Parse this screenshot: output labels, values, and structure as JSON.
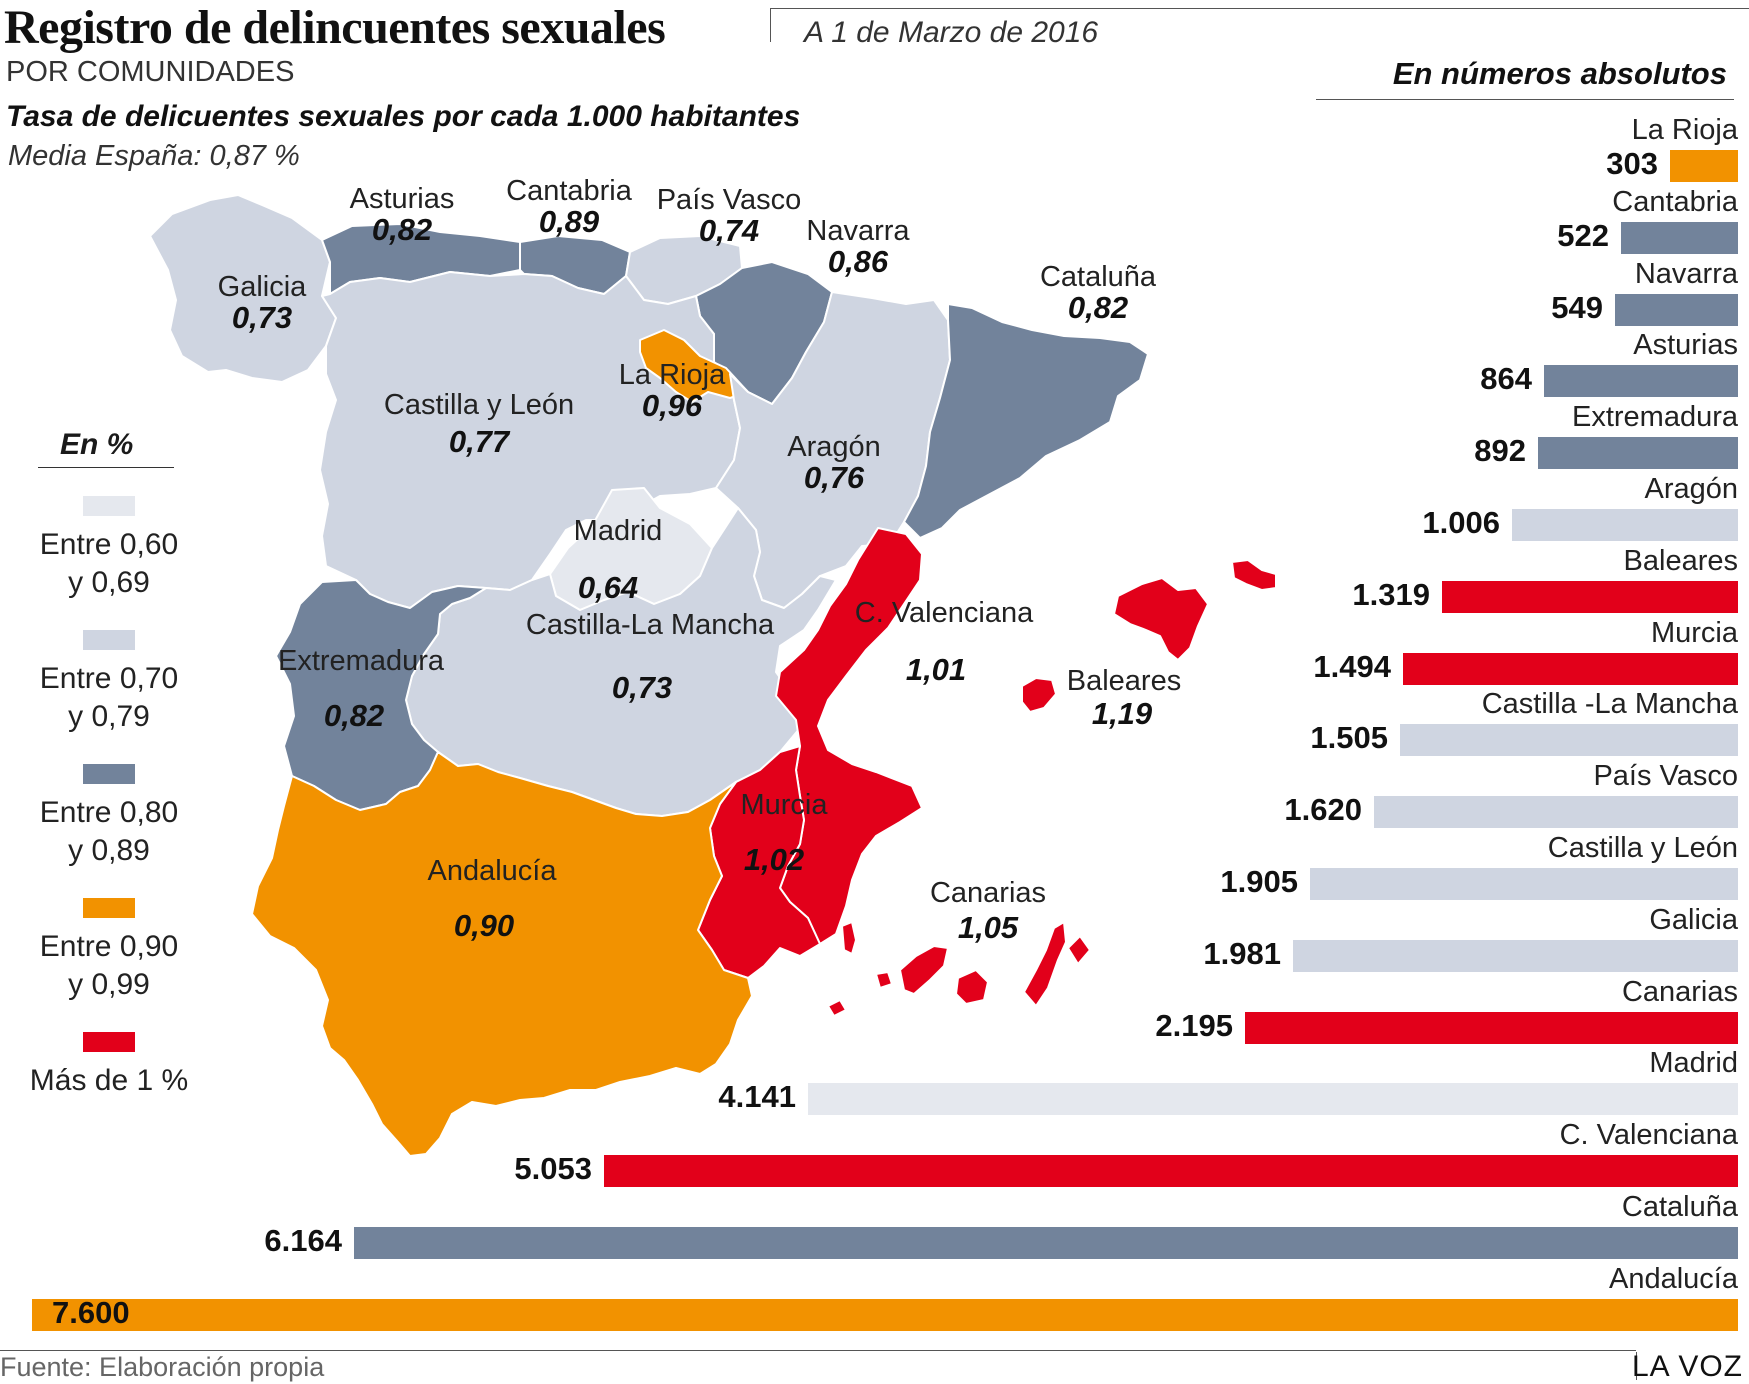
{
  "header": {
    "title": "Registro de delincuentes sexuales",
    "date": "A 1 de Marzo de 2016",
    "subtitle": "POR COMUNIDADES",
    "rate_title": "Tasa de delicuentes sexuales por cada 1.000 habitantes",
    "mean": "Media España: 0,87 %",
    "abs_title": "En números absolutos"
  },
  "colors": {
    "band_060_069": "#e5e8ee",
    "band_070_079": "#cfd5e1",
    "band_080_089": "#72839b",
    "band_090_099": "#f29200",
    "band_over_1": "#e2001a"
  },
  "legend": {
    "title": "En %",
    "items": [
      {
        "label1": "Entre 0,60",
        "label2": "y 0,69",
        "color": "#e5e8ee"
      },
      {
        "label1": "Entre 0,70",
        "label2": "y 0,79",
        "color": "#cfd5e1"
      },
      {
        "label1": "Entre 0,80",
        "label2": "y 0,89",
        "color": "#72839b"
      },
      {
        "label1": "Entre 0,90",
        "label2": "y 0,99",
        "color": "#f29200"
      },
      {
        "label1": "Más de 1 %",
        "label2": "",
        "color": "#e2001a"
      }
    ]
  },
  "map": {
    "regions": [
      {
        "name": "Galicia",
        "value": "0,73"
      },
      {
        "name": "Asturias",
        "value": "0,82"
      },
      {
        "name": "Cantabria",
        "value": "0,89"
      },
      {
        "name": "País Vasco",
        "value": "0,74"
      },
      {
        "name": "Navarra",
        "value": "0,86"
      },
      {
        "name": "Cataluña",
        "value": "0,82"
      },
      {
        "name": "La Rioja",
        "value": "0,96"
      },
      {
        "name": "Castilla y León",
        "value": "0,77"
      },
      {
        "name": "Aragón",
        "value": "0,76"
      },
      {
        "name": "Madrid",
        "value": "0,64"
      },
      {
        "name": "Castilla-La Mancha",
        "value": "0,73"
      },
      {
        "name": "C. Valenciana",
        "value": "1,01"
      },
      {
        "name": "Baleares",
        "value": "1,19"
      },
      {
        "name": "Extremadura",
        "value": "0,82"
      },
      {
        "name": "Murcia",
        "value": "1,02"
      },
      {
        "name": "Andalucía",
        "value": "0,90"
      },
      {
        "name": "Canarias",
        "value": "1,05"
      }
    ]
  },
  "chart_data": {
    "type": "bar",
    "orientation": "horizontal",
    "title": "En números absolutos",
    "categories": [
      "La Rioja",
      "Cantabria",
      "Navarra",
      "Asturias",
      "Extremadura",
      "Aragón",
      "Baleares",
      "Murcia",
      "Castilla -La Mancha",
      "País Vasco",
      "Castilla y León",
      "Galicia",
      "Canarias",
      "Madrid",
      "C. Valenciana",
      "Cataluña",
      "Andalucía"
    ],
    "values": [
      303,
      522,
      549,
      864,
      892,
      1006,
      1319,
      1494,
      1505,
      1620,
      1905,
      1981,
      2195,
      4141,
      5053,
      6164,
      7600
    ],
    "value_labels": [
      "303",
      "522",
      "549",
      "864",
      "892",
      "1.006",
      "1.319",
      "1.494",
      "1.505",
      "1.620",
      "1.905",
      "1.981",
      "2.195",
      "4.141",
      "5.053",
      "6.164",
      "7.600"
    ],
    "colors": [
      "#f29200",
      "#72839b",
      "#72839b",
      "#72839b",
      "#72839b",
      "#cfd5e1",
      "#e2001a",
      "#e2001a",
      "#cfd5e1",
      "#cfd5e1",
      "#cfd5e1",
      "#cfd5e1",
      "#e2001a",
      "#e5e8ee",
      "#e2001a",
      "#72839b",
      "#f29200"
    ],
    "bar_alignment": "right"
  },
  "footer": {
    "source": "Fuente: Elaboración propia",
    "brand": "LA VOZ"
  }
}
